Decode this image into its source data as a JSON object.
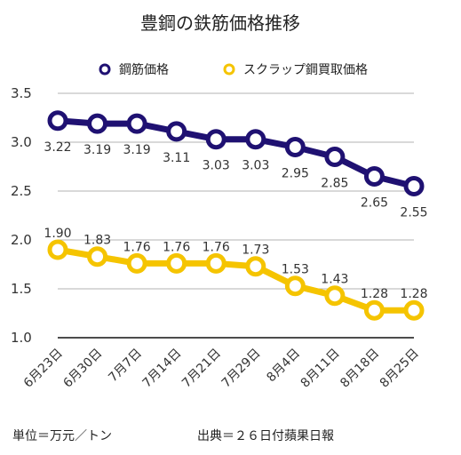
{
  "chart_data": {
    "type": "line",
    "title": "豊鋼の鉄筋価格推移",
    "categories": [
      "6月23日",
      "6月30日",
      "7月7日",
      "7月14日",
      "7月21日",
      "7月29日",
      "8月4日",
      "8月11日",
      "8月18日",
      "8月25日"
    ],
    "series": [
      {
        "name": "鋼筋価格",
        "color": "#1f1172",
        "values": [
          3.22,
          3.19,
          3.19,
          3.11,
          3.03,
          3.03,
          2.95,
          2.85,
          2.65,
          2.55
        ]
      },
      {
        "name": "スクラップ鋼買取価格",
        "color": "#f5c400",
        "values": [
          1.9,
          1.83,
          1.76,
          1.76,
          1.76,
          1.73,
          1.53,
          1.43,
          1.28,
          1.28
        ]
      }
    ],
    "yticks": [
      "1.0",
      "1.5",
      "2.0",
      "2.5",
      "3.0",
      "3.5"
    ],
    "ylim": [
      1.0,
      3.5
    ],
    "grid": true,
    "legend": "top",
    "xlabel": "",
    "ylabel": ""
  },
  "footer": {
    "unit": "単位＝万元／トン",
    "source": "出典＝２６日付蘋果日報"
  }
}
